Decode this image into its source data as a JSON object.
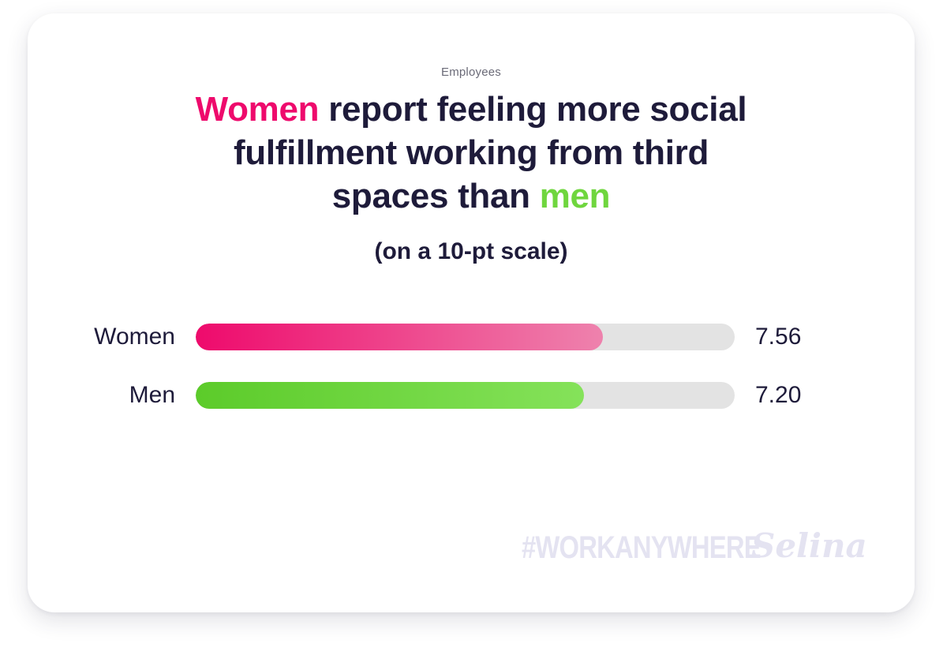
{
  "header": {
    "eyebrow": "Employees",
    "title_women": "Women",
    "title_line1_rest": " report feeling more social",
    "title_line2": "fulfillment working from third",
    "title_line3_start": "spaces than ",
    "title_men": "men",
    "subtitle": "(on a 10-pt scale)"
  },
  "chart_data": {
    "type": "bar",
    "orientation": "horizontal",
    "title": "Women report feeling more social fulfillment working from third spaces than men",
    "subtitle": "(on a 10-pt scale)",
    "categories": [
      "Women",
      "Men"
    ],
    "values": [
      7.56,
      7.2
    ],
    "value_labels": [
      "7.56",
      "7.20"
    ],
    "xlim": [
      0,
      10
    ],
    "grid": false,
    "colors": {
      "Women": {
        "start": "#ee0a6c",
        "end": "#ee82ad"
      },
      "Men": {
        "start": "#5ccb2a",
        "end": "#85e25a"
      },
      "track": "#e3e3e3"
    }
  },
  "footer": {
    "hashtag": "#WORKANYWHERE",
    "brand": "Selina"
  }
}
